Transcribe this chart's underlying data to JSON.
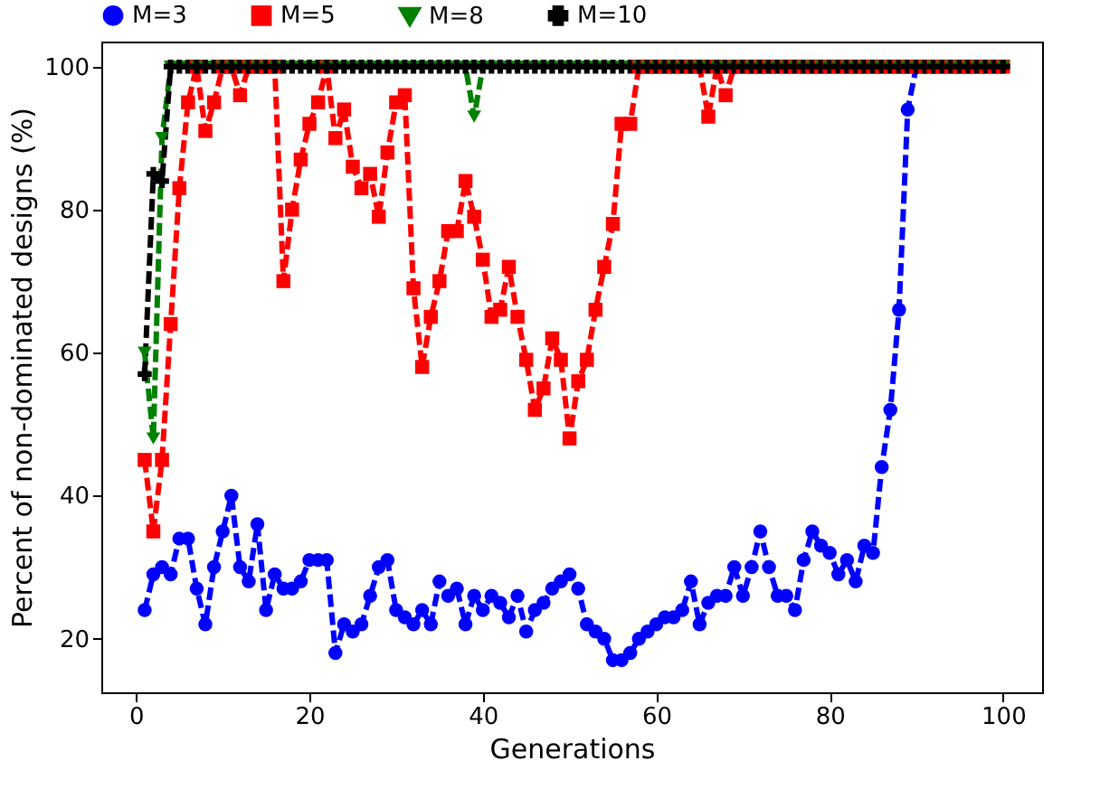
{
  "chart_data": {
    "type": "line",
    "xlabel": "Generations",
    "ylabel": "Percent of non-dominated designs (%)",
    "x": [
      1,
      2,
      3,
      4,
      5,
      6,
      7,
      8,
      9,
      10,
      11,
      12,
      13,
      14,
      15,
      16,
      17,
      18,
      19,
      20,
      21,
      22,
      23,
      24,
      25,
      26,
      27,
      28,
      29,
      30,
      31,
      32,
      33,
      34,
      35,
      36,
      37,
      38,
      39,
      40,
      41,
      42,
      43,
      44,
      45,
      46,
      47,
      48,
      49,
      50,
      51,
      52,
      53,
      54,
      55,
      56,
      57,
      58,
      59,
      60,
      61,
      62,
      63,
      64,
      65,
      66,
      67,
      68,
      69,
      70,
      71,
      72,
      73,
      74,
      75,
      76,
      77,
      78,
      79,
      80,
      81,
      82,
      83,
      84,
      85,
      86,
      87,
      88,
      89,
      90,
      91,
      92,
      93,
      94,
      95,
      96,
      97,
      98,
      99,
      100
    ],
    "series": [
      {
        "name": "M=3",
        "color": "#0000ff",
        "marker": "circle",
        "values": [
          24,
          29,
          30,
          29,
          34,
          34,
          27,
          22,
          30,
          35,
          40,
          30,
          28,
          36,
          24,
          29,
          27,
          27,
          28,
          31,
          31,
          31,
          18,
          22,
          21,
          22,
          26,
          30,
          31,
          24,
          23,
          22,
          24,
          22,
          28,
          26,
          27,
          22,
          26,
          24,
          26,
          25,
          23,
          26,
          21,
          24,
          25,
          27,
          28,
          29,
          27,
          22,
          21,
          20,
          17,
          17,
          18,
          20,
          21,
          22,
          23,
          23,
          24,
          28,
          22,
          25,
          26,
          26,
          30,
          26,
          30,
          35,
          30,
          26,
          26,
          24,
          31,
          35,
          33,
          32,
          29,
          31,
          28,
          33,
          32,
          44,
          52,
          66,
          94,
          100,
          100,
          100,
          null,
          null,
          null,
          null,
          null,
          null,
          null,
          null
        ]
      },
      {
        "name": "M=5",
        "color": "#ff0000",
        "marker": "square",
        "values": [
          45,
          35,
          45,
          64,
          83,
          95,
          100,
          91,
          95,
          100,
          100,
          96,
          100,
          100,
          100,
          100,
          70,
          80,
          87,
          92,
          95,
          100,
          90,
          94,
          86,
          83,
          85,
          79,
          88,
          95,
          96,
          69,
          58,
          65,
          70,
          77,
          77,
          84,
          79,
          73,
          65,
          66,
          72,
          65,
          59,
          52,
          55,
          62,
          59,
          48,
          56,
          59,
          66,
          72,
          78,
          92,
          92,
          100,
          100,
          100,
          100,
          100,
          100,
          100,
          100,
          93,
          100,
          96,
          100,
          100,
          100,
          100,
          100,
          100,
          100,
          100,
          100,
          100,
          100,
          100,
          100,
          100,
          100,
          100,
          100,
          100,
          100,
          100,
          100,
          100,
          100,
          100,
          100,
          100,
          100,
          100,
          100,
          100,
          100,
          100
        ]
      },
      {
        "name": "M=8",
        "color": "#008000",
        "marker": "triangle-down",
        "values": [
          60,
          48,
          90,
          100,
          100,
          100,
          100,
          100,
          100,
          100,
          100,
          100,
          100,
          100,
          100,
          100,
          100,
          100,
          100,
          100,
          100,
          100,
          100,
          100,
          100,
          100,
          100,
          100,
          100,
          100,
          100,
          100,
          100,
          100,
          100,
          100,
          100,
          100,
          93,
          100,
          100,
          100,
          100,
          100,
          100,
          100,
          100,
          100,
          100,
          100,
          100,
          100,
          100,
          100,
          100,
          100,
          100,
          100,
          100,
          100,
          100,
          100,
          100,
          100,
          100,
          100,
          100,
          100,
          100,
          100,
          100,
          100,
          100,
          100,
          100,
          100,
          100,
          100,
          100,
          100,
          100,
          100,
          100,
          100,
          100,
          100,
          100,
          100,
          100,
          100,
          100,
          100,
          100,
          100,
          100,
          100,
          100,
          100,
          100,
          100
        ]
      },
      {
        "name": "M=10",
        "color": "#000000",
        "marker": "cross",
        "values": [
          57,
          85,
          84,
          100,
          100,
          100,
          100,
          100,
          100,
          100,
          100,
          100,
          100,
          100,
          100,
          100,
          100,
          100,
          100,
          100,
          100,
          100,
          100,
          100,
          100,
          100,
          100,
          100,
          100,
          100,
          100,
          100,
          100,
          100,
          100,
          100,
          100,
          100,
          100,
          100,
          100,
          100,
          100,
          100,
          100,
          100,
          100,
          100,
          100,
          100,
          100,
          100,
          100,
          100,
          100,
          100,
          100,
          100,
          100,
          100,
          100,
          100,
          100,
          100,
          100,
          100,
          100,
          100,
          100,
          100,
          100,
          100,
          100,
          100,
          100,
          100,
          100,
          100,
          100,
          100,
          100,
          100,
          100,
          100,
          100,
          100,
          100,
          100,
          100,
          100,
          100,
          100,
          100,
          100,
          100,
          100,
          100,
          100,
          100,
          100
        ]
      }
    ],
    "xlim": [
      -4,
      104.5
    ],
    "xticks": [
      0,
      20,
      40,
      60,
      80,
      100
    ],
    "ylim": [
      12.5,
      103.5
    ],
    "yticks": [
      20,
      40,
      60,
      80,
      100
    ],
    "line_style": "dashed",
    "grid": false,
    "legend": "top"
  }
}
